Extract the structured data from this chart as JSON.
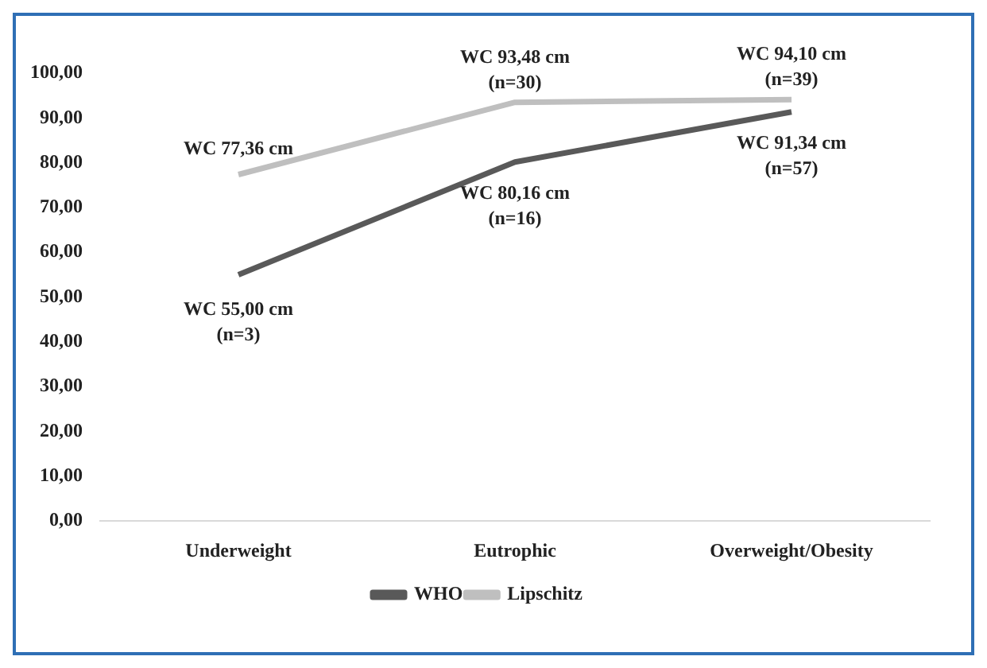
{
  "chart_data": {
    "type": "line",
    "categories": [
      "Underweight",
      "Eutrophic",
      "Overweight/Obesity"
    ],
    "series": [
      {
        "name": "WHO",
        "color": "#595959",
        "values": [
          55.0,
          80.16,
          91.34
        ],
        "value_labels": [
          "WC 55,00 cm\n(n=3)",
          "WC 80,16 cm\n(n=16)",
          "WC 91,34 cm\n(n=57)"
        ]
      },
      {
        "name": "Lipschitz",
        "color": "#bfbfbf",
        "values": [
          77.36,
          93.48,
          94.1
        ],
        "value_labels": [
          "WC 77,36 cm",
          "WC 93,48 cm\n(n=30)",
          "WC 94,10 cm\n(n=39)"
        ]
      }
    ],
    "ylim": [
      0,
      100
    ],
    "yticks": [
      {
        "value": 0,
        "label": "0,00"
      },
      {
        "value": 10,
        "label": "10,00"
      },
      {
        "value": 20,
        "label": "20,00"
      },
      {
        "value": 30,
        "label": "30,00"
      },
      {
        "value": 40,
        "label": "40,00"
      },
      {
        "value": 50,
        "label": "50,00"
      },
      {
        "value": 60,
        "label": "60,00"
      },
      {
        "value": 70,
        "label": "70,00"
      },
      {
        "value": 80,
        "label": "80,00"
      },
      {
        "value": 90,
        "label": "90,00"
      },
      {
        "value": 100,
        "label": "100,00"
      }
    ],
    "grid": false,
    "legend": "bottom",
    "marker": "none",
    "line_style": "solid"
  }
}
